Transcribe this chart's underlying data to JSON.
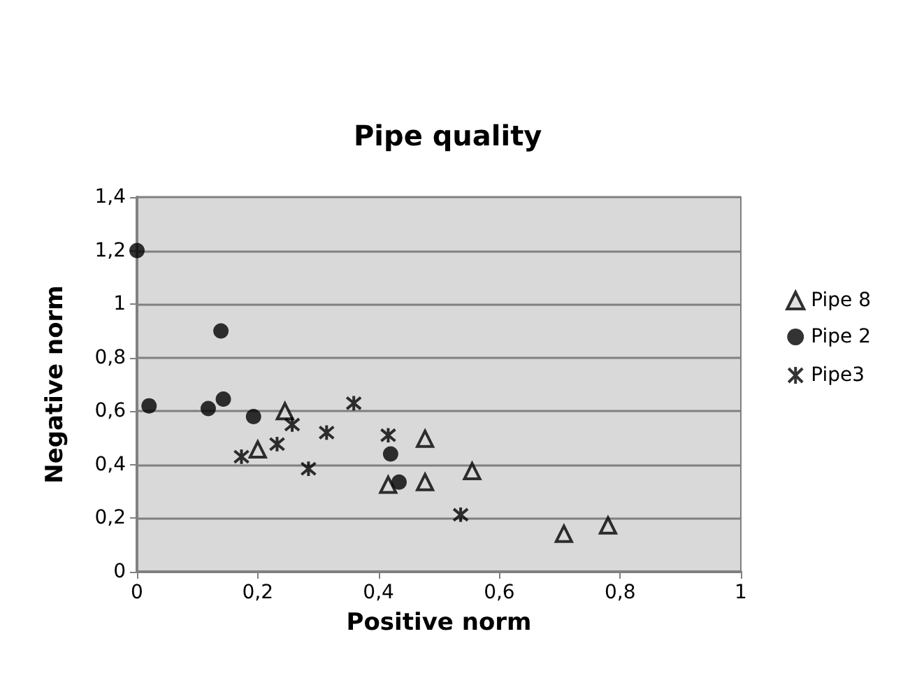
{
  "chart_data": {
    "type": "scatter",
    "title": "Pipe quality",
    "xlabel": "Positive norm",
    "ylabel": "Negative norm",
    "xlim": [
      0,
      1
    ],
    "xticks": [
      0,
      {
        "value": 0.2,
        "label": "0,2"
      },
      {
        "value": 0.4,
        "label": "0,4"
      },
      {
        "value": 0.6,
        "label": "0,6"
      },
      {
        "value": 0.8,
        "label": "0,8"
      },
      1
    ],
    "ylim": [
      0,
      1.4
    ],
    "yticks": [
      0,
      {
        "value": 0.2,
        "label": "0,2"
      },
      {
        "value": 0.4,
        "label": "0,4"
      },
      {
        "value": 0.6,
        "label": "0,6"
      },
      {
        "value": 0.8,
        "label": "0,8"
      },
      1,
      {
        "value": 1.2,
        "label": "1,2"
      },
      {
        "value": 1.4,
        "label": "1,4"
      }
    ],
    "grid": "y",
    "legend": "right",
    "series": [
      {
        "name": "Pipe 8",
        "color": "#000000",
        "marker": "triangle",
        "x": [
          0.245,
          0.2,
          0.477,
          0.416,
          0.477,
          0.555,
          0.707,
          0.78
        ],
        "values": [
          0.6,
          0.457,
          0.497,
          0.325,
          0.335,
          0.376,
          0.142,
          0.173
        ]
      },
      {
        "name": "Pipe 2",
        "color": "#000000",
        "marker": "circle",
        "x": [
          0,
          0.02,
          0.118,
          0.143,
          0.139,
          0.193,
          0.42,
          0.434
        ],
        "values": [
          1.2,
          0.62,
          0.61,
          0.645,
          0.9,
          0.58,
          0.44,
          0.335
        ]
      },
      {
        "name": "Pipe3",
        "color": "#000000",
        "marker": "cross",
        "x": [
          0.173,
          0.232,
          0.257,
          0.314,
          0.284,
          0.359,
          0.416,
          0.536
        ],
        "values": [
          0.43,
          0.477,
          0.55,
          0.52,
          0.385,
          0.63,
          0.51,
          0.213
        ]
      }
    ]
  }
}
